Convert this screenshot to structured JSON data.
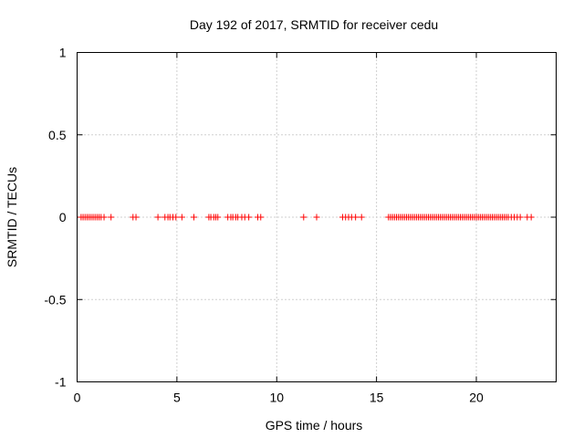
{
  "chart_data": {
    "type": "scatter",
    "title": "Day 192 of 2017, SRMTID for receiver cedu",
    "xlabel": "GPS time / hours",
    "ylabel": "SRMTID / TECUs",
    "xlim": [
      0,
      24
    ],
    "ylim": [
      -1,
      1
    ],
    "xticks": [
      0,
      5,
      10,
      15,
      20
    ],
    "yticks": [
      -1,
      -0.5,
      0,
      0.5,
      1
    ],
    "xtick_labels": [
      "0",
      "5",
      "10",
      "15",
      "20"
    ],
    "ytick_labels": [
      "-1",
      "-0.5",
      "0",
      "0.5",
      "1"
    ],
    "grid": true,
    "marker": "plus",
    "series": [
      {
        "name": "cedu",
        "color": "#ff0000",
        "points": [
          [
            0.2,
            0
          ],
          [
            0.3,
            0
          ],
          [
            0.4,
            0
          ],
          [
            0.5,
            0
          ],
          [
            0.6,
            0
          ],
          [
            0.7,
            0
          ],
          [
            0.8,
            0
          ],
          [
            0.9,
            0
          ],
          [
            1.0,
            0
          ],
          [
            1.1,
            0
          ],
          [
            1.2,
            0
          ],
          [
            1.35,
            0
          ],
          [
            1.7,
            0
          ],
          [
            2.8,
            0
          ],
          [
            2.95,
            0
          ],
          [
            4.05,
            0
          ],
          [
            4.4,
            0
          ],
          [
            4.55,
            0
          ],
          [
            4.65,
            0
          ],
          [
            4.8,
            0
          ],
          [
            4.95,
            0
          ],
          [
            5.25,
            0
          ],
          [
            5.85,
            0
          ],
          [
            6.6,
            0
          ],
          [
            6.7,
            0
          ],
          [
            6.85,
            0
          ],
          [
            6.95,
            0
          ],
          [
            7.05,
            0
          ],
          [
            7.55,
            0
          ],
          [
            7.7,
            0
          ],
          [
            7.8,
            0
          ],
          [
            7.95,
            0
          ],
          [
            8.05,
            0
          ],
          [
            8.25,
            0
          ],
          [
            8.4,
            0
          ],
          [
            8.6,
            0
          ],
          [
            9.05,
            0
          ],
          [
            9.2,
            0
          ],
          [
            11.35,
            0
          ],
          [
            12.0,
            0
          ],
          [
            13.3,
            0
          ],
          [
            13.45,
            0
          ],
          [
            13.6,
            0
          ],
          [
            13.75,
            0
          ],
          [
            13.95,
            0
          ],
          [
            14.25,
            0
          ],
          [
            15.6,
            0
          ],
          [
            15.7,
            0
          ],
          [
            15.8,
            0
          ],
          [
            15.9,
            0
          ],
          [
            16.0,
            0
          ],
          [
            16.1,
            0
          ],
          [
            16.2,
            0
          ],
          [
            16.3,
            0
          ],
          [
            16.4,
            0
          ],
          [
            16.5,
            0
          ],
          [
            16.6,
            0
          ],
          [
            16.7,
            0
          ],
          [
            16.8,
            0
          ],
          [
            16.9,
            0
          ],
          [
            17.0,
            0
          ],
          [
            17.1,
            0
          ],
          [
            17.2,
            0
          ],
          [
            17.3,
            0
          ],
          [
            17.4,
            0
          ],
          [
            17.5,
            0
          ],
          [
            17.6,
            0
          ],
          [
            17.7,
            0
          ],
          [
            17.8,
            0
          ],
          [
            17.9,
            0
          ],
          [
            18.0,
            0
          ],
          [
            18.1,
            0
          ],
          [
            18.2,
            0
          ],
          [
            18.3,
            0
          ],
          [
            18.4,
            0
          ],
          [
            18.5,
            0
          ],
          [
            18.6,
            0
          ],
          [
            18.7,
            0
          ],
          [
            18.8,
            0
          ],
          [
            18.9,
            0
          ],
          [
            19.0,
            0
          ],
          [
            19.1,
            0
          ],
          [
            19.2,
            0
          ],
          [
            19.3,
            0
          ],
          [
            19.4,
            0
          ],
          [
            19.5,
            0
          ],
          [
            19.6,
            0
          ],
          [
            19.7,
            0
          ],
          [
            19.8,
            0
          ],
          [
            19.9,
            0
          ],
          [
            20.0,
            0
          ],
          [
            20.1,
            0
          ],
          [
            20.2,
            0
          ],
          [
            20.3,
            0
          ],
          [
            20.4,
            0
          ],
          [
            20.5,
            0
          ],
          [
            20.6,
            0
          ],
          [
            20.7,
            0
          ],
          [
            20.8,
            0
          ],
          [
            20.9,
            0
          ],
          [
            21.0,
            0
          ],
          [
            21.1,
            0
          ],
          [
            21.2,
            0
          ],
          [
            21.3,
            0
          ],
          [
            21.4,
            0
          ],
          [
            21.5,
            0
          ],
          [
            21.6,
            0
          ],
          [
            21.75,
            0
          ],
          [
            21.9,
            0
          ],
          [
            22.05,
            0
          ],
          [
            22.2,
            0
          ],
          [
            22.55,
            0
          ],
          [
            22.75,
            0
          ]
        ]
      }
    ]
  }
}
